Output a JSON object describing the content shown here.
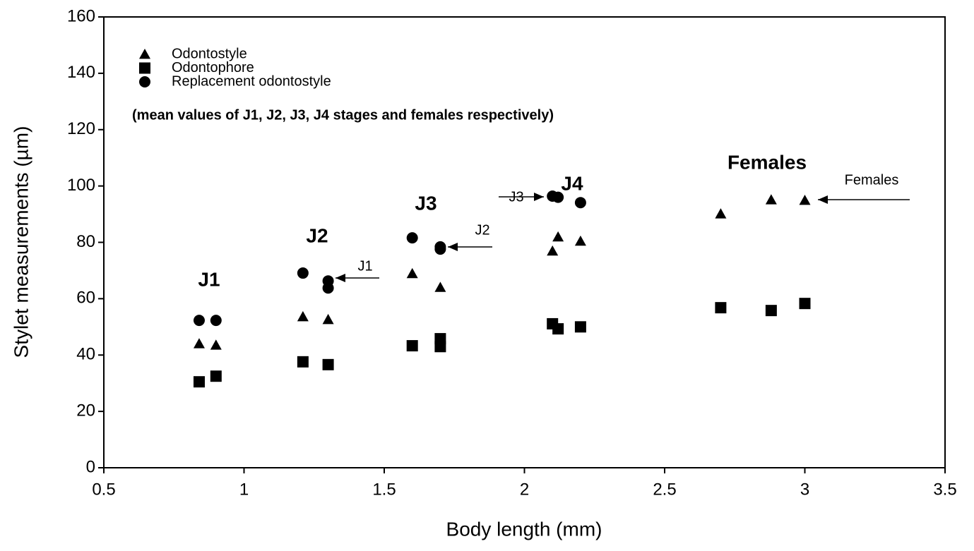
{
  "chart_data": {
    "type": "scatter",
    "xlabel": "Body length (mm)",
    "ylabel": "Stylet measurements (µm)",
    "note": "(mean values of J1, J2, J3, J4 stages and females respectively)",
    "xlim": [
      0.5,
      3.5
    ],
    "xticks": [
      0.5,
      1,
      1.5,
      2,
      2.5,
      3,
      3.5
    ],
    "ylim": [
      0,
      160
    ],
    "yticks": [
      0,
      20,
      40,
      60,
      80,
      100,
      120,
      140,
      160
    ],
    "series": [
      {
        "name": "Odontostyle",
        "color": "#000000",
        "marker": "triangle",
        "x": [
          0.84,
          0.9,
          1.21,
          1.3,
          1.6,
          1.7,
          2.1,
          2.12,
          2.2,
          2.7,
          2.88,
          3.0
        ],
        "values": [
          44,
          43.5,
          53.6,
          52.6,
          68.9,
          64,
          76.9,
          81.9,
          80.4,
          90.1,
          95.1,
          94.9
        ]
      },
      {
        "name": "Odontophore",
        "color": "#000000",
        "marker": "square",
        "x": [
          0.84,
          0.9,
          1.21,
          1.3,
          1.6,
          1.7,
          1.7,
          2.1,
          2.12,
          2.2,
          2.7,
          2.88,
          3.0
        ],
        "values": [
          30.5,
          32.5,
          37.6,
          36.6,
          43.3,
          45.8,
          43,
          51.1,
          49.3,
          50,
          56.8,
          55.8,
          58.3
        ]
      },
      {
        "name": "Replacement odontostyle",
        "color": "#000000",
        "marker": "circle",
        "x": [
          0.84,
          0.9,
          1.21,
          1.3,
          1.3,
          1.6,
          1.7,
          1.7,
          2.1,
          2.12,
          2.2
        ],
        "values": [
          52.3,
          52.3,
          69.1,
          66.3,
          63.8,
          81.6,
          78.4,
          77.6,
          96.4,
          96,
          94.1
        ]
      }
    ],
    "annotations": [
      "J1",
      "J2",
      "J3",
      "J4",
      "Females",
      "J1",
      "J2",
      "J3",
      "Females"
    ]
  }
}
